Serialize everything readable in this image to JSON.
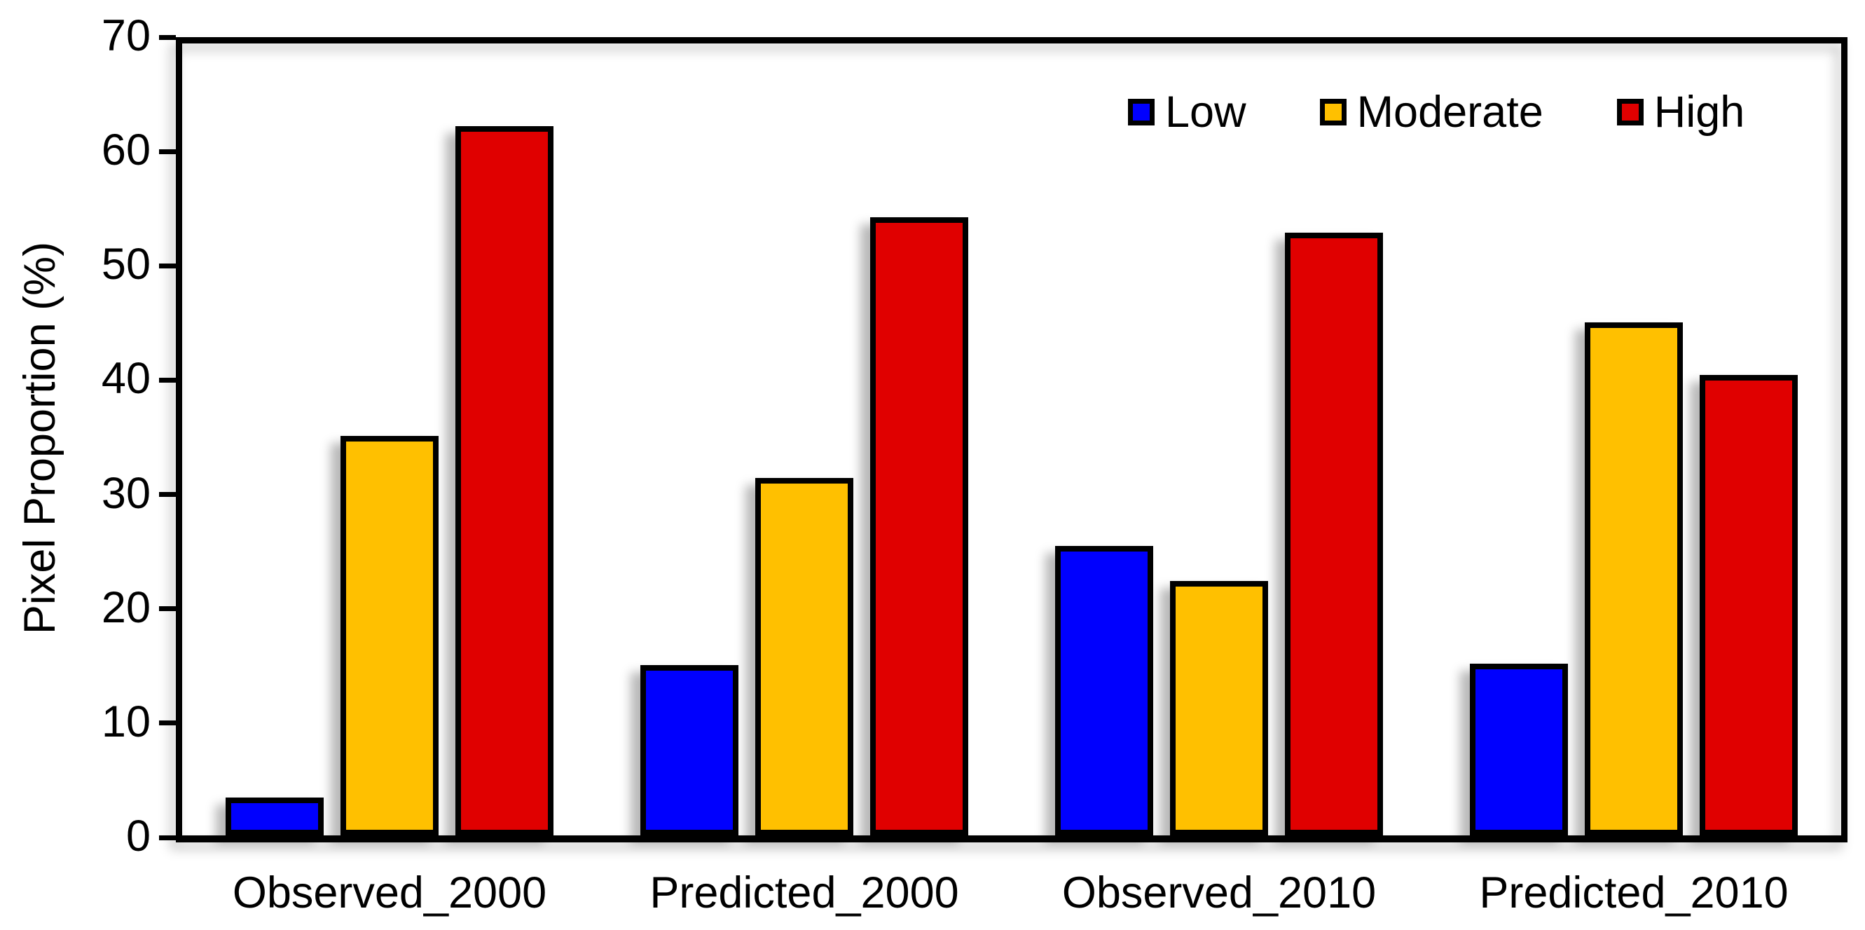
{
  "chart_data": {
    "type": "bar",
    "categories": [
      "Observed_2000",
      "Predicted_2000",
      "Observed_2010",
      "Predicted_2010"
    ],
    "series": [
      {
        "name": "Low",
        "color": "#0000FE",
        "values": [
          3.3,
          14.9,
          25.3,
          15.0
        ]
      },
      {
        "name": "Moderate",
        "color": "#FFC000",
        "values": [
          34.9,
          31.2,
          22.2,
          44.8
        ]
      },
      {
        "name": "High",
        "color": "#E00000",
        "values": [
          61.9,
          54.0,
          52.6,
          40.2
        ]
      }
    ],
    "xlabel": "",
    "ylabel": "Pixel Proportion (%)",
    "ylim": [
      0,
      70
    ],
    "yticks": [
      0,
      10,
      20,
      30,
      40,
      50,
      60,
      70
    ],
    "grid": false,
    "legend_position": "top-right-inside",
    "bar_border_color": "#000000",
    "axis_color": "#000000",
    "background_color": "#FFFFFF"
  }
}
